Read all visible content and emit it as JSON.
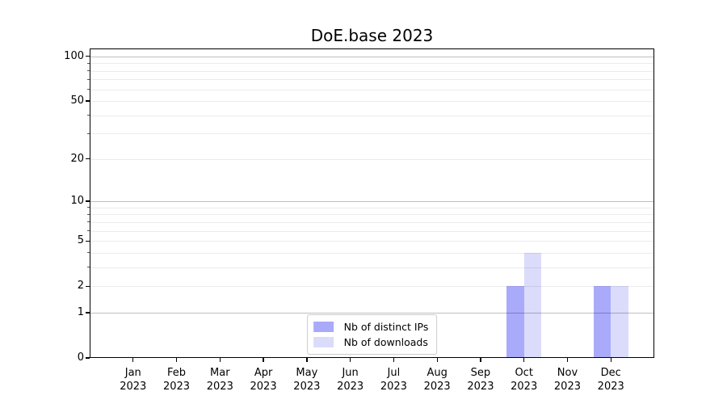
{
  "figure": {
    "background": "#ffffff"
  },
  "chart_data": {
    "type": "bar",
    "title": "DoE.base 2023",
    "categories": [
      "Jan 2023",
      "Feb 2023",
      "Mar 2023",
      "Apr 2023",
      "May 2023",
      "Jun 2023",
      "Jul 2023",
      "Aug 2023",
      "Sep 2023",
      "Oct 2023",
      "Nov 2023",
      "Dec 2023"
    ],
    "series": [
      {
        "name": "Nb of distinct IPs",
        "color": "#aaaafb",
        "values": [
          0,
          0,
          0,
          0,
          0,
          0,
          0,
          0,
          0,
          2,
          0,
          2
        ]
      },
      {
        "name": "Nb of downloads",
        "color": "#dbdbfb",
        "values": [
          0,
          0,
          0,
          0,
          0,
          0,
          0,
          0,
          0,
          4,
          0,
          2
        ]
      }
    ],
    "xlabel": "",
    "ylabel": "",
    "yscale": "log1p",
    "ylim": [
      0,
      113
    ],
    "ytick_values": [
      0,
      1,
      2,
      5,
      10,
      20,
      50,
      100
    ],
    "ytick_labels": [
      "0",
      "1",
      "2",
      "5",
      "10",
      "20",
      "50",
      "100"
    ],
    "major_grid_values": [
      1,
      10,
      100
    ],
    "minor_grid_values": [
      2,
      3,
      4,
      5,
      6,
      7,
      8,
      9,
      20,
      30,
      40,
      50,
      60,
      70,
      80,
      90
    ],
    "grid": true,
    "legend_position": "lower center",
    "bar_width_fraction": 0.4,
    "colors": {
      "major_grid": "rgba(0,0,0,0.25)",
      "minor_grid": "rgba(0,0,0,0.08)",
      "spine": "#000000",
      "legend_border": "#cccccc",
      "text": "#000000"
    }
  }
}
